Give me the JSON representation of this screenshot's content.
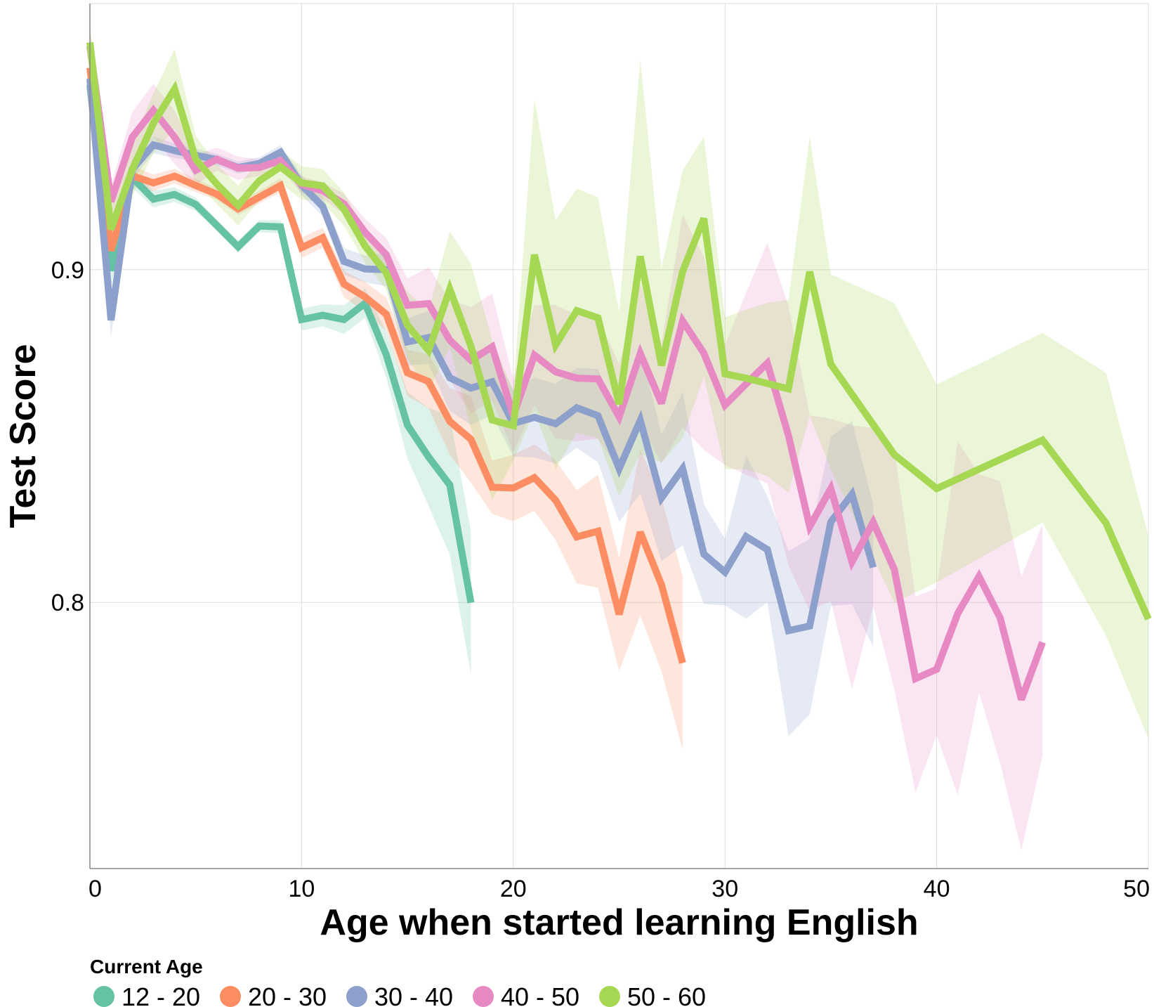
{
  "chart_data": {
    "type": "line",
    "xlabel": "Age when started learning English",
    "ylabel": "Test Score",
    "xlim": [
      0,
      50
    ],
    "ylim": [
      0.72,
      0.98
    ],
    "x_ticks": [
      0,
      10,
      20,
      30,
      40,
      50
    ],
    "x_tick_labels": [
      "0",
      "10",
      "20",
      "30",
      "40",
      "50"
    ],
    "y_ticks": [
      0.8,
      0.9
    ],
    "y_tick_labels": [
      "0.8",
      "0.9"
    ],
    "grid": true,
    "legend": {
      "title": "Current Age",
      "placement": "bottom-left"
    },
    "series": [
      {
        "name": "12 - 20",
        "color": "#66c2a5",
        "x": [
          0,
          1,
          2,
          3,
          4,
          5,
          6,
          7,
          8,
          9,
          10,
          11,
          12,
          13,
          14,
          15,
          16,
          17,
          18
        ],
        "y": [
          0.9555,
          0.8997,
          0.9277,
          0.9212,
          0.9226,
          0.9196,
          0.9133,
          0.9069,
          0.9131,
          0.9129,
          0.885,
          0.8863,
          0.885,
          0.8899,
          0.8744,
          0.8533,
          0.8437,
          0.8353,
          0.7999
        ],
        "lower": [
          0.9505,
          0.8947,
          0.9247,
          0.9187,
          0.9204,
          0.9176,
          0.9116,
          0.9051,
          0.9113,
          0.9109,
          0.8817,
          0.883,
          0.8807,
          0.8855,
          0.8675,
          0.8433,
          0.829,
          0.8143,
          0.7784
        ],
        "upper": [
          0.9605,
          0.9047,
          0.9307,
          0.9237,
          0.9248,
          0.9216,
          0.915,
          0.9087,
          0.9149,
          0.9149,
          0.8883,
          0.8896,
          0.8893,
          0.8943,
          0.8813,
          0.8633,
          0.8584,
          0.8563,
          0.8214
        ]
      },
      {
        "name": "20 - 30",
        "color": "#fc8d62",
        "x": [
          0,
          1,
          2,
          3,
          4,
          5,
          6,
          7,
          8,
          9,
          10,
          11,
          12,
          13,
          14,
          15,
          16,
          17,
          18,
          19,
          20,
          21,
          22,
          23,
          24,
          25,
          26,
          27,
          28
        ],
        "y": [
          0.9607,
          0.9057,
          0.9282,
          0.9261,
          0.9281,
          0.9253,
          0.9227,
          0.9183,
          0.9218,
          0.9253,
          0.9066,
          0.9096,
          0.8957,
          0.8918,
          0.8866,
          0.869,
          0.8664,
          0.8544,
          0.849,
          0.8346,
          0.8344,
          0.8375,
          0.8307,
          0.8197,
          0.8214,
          0.7964,
          0.8211,
          0.8053,
          0.7818
        ],
        "lower": [
          0.9557,
          0.9007,
          0.9252,
          0.9236,
          0.9259,
          0.9233,
          0.921,
          0.9165,
          0.9199,
          0.9232,
          0.9036,
          0.9066,
          0.8917,
          0.8873,
          0.8816,
          0.862,
          0.8584,
          0.8444,
          0.836,
          0.8266,
          0.8244,
          0.8275,
          0.8187,
          0.8057,
          0.8044,
          0.7794,
          0.7961,
          0.7793,
          0.7558
        ],
        "upper": [
          0.9657,
          0.9107,
          0.9312,
          0.9286,
          0.9303,
          0.9273,
          0.9244,
          0.9201,
          0.9237,
          0.9274,
          0.9096,
          0.9126,
          0.8997,
          0.8963,
          0.8916,
          0.876,
          0.8744,
          0.8644,
          0.862,
          0.8426,
          0.8444,
          0.8475,
          0.8427,
          0.8337,
          0.8384,
          0.8134,
          0.8461,
          0.8313,
          0.8078
        ]
      },
      {
        "name": "30 - 40",
        "color": "#8da0cb",
        "x": [
          0,
          1,
          2,
          3,
          4,
          5,
          6,
          7,
          8,
          9,
          10,
          11,
          12,
          13,
          14,
          15,
          16,
          17,
          18,
          19,
          20,
          21,
          22,
          23,
          24,
          25,
          26,
          27,
          28,
          29,
          30,
          31,
          32,
          33,
          34,
          35,
          36,
          37
        ],
        "y": [
          0.9574,
          0.8848,
          0.9302,
          0.9375,
          0.9358,
          0.9344,
          0.9331,
          0.9307,
          0.9319,
          0.9353,
          0.9254,
          0.919,
          0.9025,
          0.9002,
          0.9,
          0.8783,
          0.8796,
          0.8675,
          0.8644,
          0.8663,
          0.8538,
          0.8556,
          0.8537,
          0.8585,
          0.8561,
          0.8402,
          0.8547,
          0.8314,
          0.8402,
          0.8145,
          0.8091,
          0.8198,
          0.8159,
          0.7915,
          0.7929,
          0.8242,
          0.8325,
          0.8105
        ],
        "lower": [
          0.9524,
          0.8798,
          0.9272,
          0.935,
          0.9336,
          0.9324,
          0.9314,
          0.9289,
          0.93,
          0.9332,
          0.9224,
          0.916,
          0.8985,
          0.8962,
          0.895,
          0.8713,
          0.8716,
          0.8575,
          0.8534,
          0.8563,
          0.8438,
          0.8436,
          0.8417,
          0.8465,
          0.8421,
          0.8242,
          0.8327,
          0.8124,
          0.8172,
          0.7995,
          0.7991,
          0.7951,
          0.8001,
          0.7598,
          0.7663,
          0.799,
          0.7994,
          0.7866
        ],
        "upper": [
          0.9624,
          0.8898,
          0.9332,
          0.94,
          0.938,
          0.9364,
          0.9348,
          0.9325,
          0.9338,
          0.9374,
          0.9284,
          0.922,
          0.9065,
          0.9042,
          0.905,
          0.8853,
          0.8876,
          0.8775,
          0.8754,
          0.8763,
          0.8638,
          0.8676,
          0.8657,
          0.8705,
          0.8701,
          0.8562,
          0.8767,
          0.8504,
          0.8632,
          0.8295,
          0.8191,
          0.8441,
          0.832,
          0.8155,
          0.8191,
          0.8498,
          0.8544,
          0.8294
        ]
      },
      {
        "name": "40 - 50",
        "color": "#e78ac3",
        "x": [
          0,
          1,
          2,
          3,
          4,
          5,
          6,
          7,
          8,
          9,
          10,
          11,
          12,
          13,
          14,
          15,
          16,
          17,
          18,
          19,
          20,
          21,
          22,
          23,
          24,
          25,
          26,
          27,
          28,
          29,
          30,
          31,
          32,
          33,
          34,
          35,
          36,
          37,
          38,
          39,
          40,
          41,
          42,
          43,
          44,
          45
        ],
        "y": [
          0.9672,
          0.9205,
          0.9398,
          0.9479,
          0.9398,
          0.9299,
          0.9332,
          0.9305,
          0.9307,
          0.9328,
          0.9256,
          0.9237,
          0.9198,
          0.9112,
          0.9045,
          0.8893,
          0.8898,
          0.8788,
          0.8728,
          0.8768,
          0.8561,
          0.8743,
          0.8693,
          0.8674,
          0.8672,
          0.8558,
          0.8748,
          0.8598,
          0.8846,
          0.8749,
          0.8593,
          0.8657,
          0.8719,
          0.8501,
          0.8228,
          0.8342,
          0.8122,
          0.8241,
          0.8099,
          0.7771,
          0.7799,
          0.7967,
          0.8078,
          0.7953,
          0.7708,
          0.788
        ],
        "lower": [
          0.9622,
          0.9155,
          0.9323,
          0.9399,
          0.9318,
          0.9254,
          0.9297,
          0.927,
          0.9282,
          0.9303,
          0.9231,
          0.9212,
          0.9168,
          0.9072,
          0.8995,
          0.8813,
          0.8788,
          0.8668,
          0.8568,
          0.8608,
          0.8451,
          0.8593,
          0.8493,
          0.8484,
          0.8492,
          0.8398,
          0.8538,
          0.8418,
          0.8526,
          0.8459,
          0.8413,
          0.8383,
          0.8358,
          0.8111,
          0.7974,
          0.8005,
          0.7739,
          0.7988,
          0.7739,
          0.7429,
          0.7601,
          0.742,
          0.7729,
          0.7516,
          0.7255,
          0.754
        ],
        "upper": [
          0.9722,
          0.9255,
          0.9473,
          0.9559,
          0.9478,
          0.9344,
          0.9367,
          0.934,
          0.9332,
          0.9353,
          0.9281,
          0.9262,
          0.9228,
          0.9152,
          0.9095,
          0.8973,
          0.9008,
          0.8908,
          0.8888,
          0.8928,
          0.8671,
          0.8893,
          0.8893,
          0.8864,
          0.8852,
          0.8718,
          0.8958,
          0.8778,
          0.9166,
          0.9039,
          0.8773,
          0.8931,
          0.908,
          0.8891,
          0.8562,
          0.8552,
          0.8532,
          0.8524,
          0.8459,
          0.8018,
          0.8042,
          0.8483,
          0.8385,
          0.8364,
          0.8077,
          0.8235
        ]
      },
      {
        "name": "50 - 60",
        "color": "#a6d854",
        "x": [
          0,
          1,
          2,
          3,
          4,
          5,
          6,
          7,
          8,
          9,
          10,
          11,
          12,
          13,
          14,
          15,
          16,
          17,
          18,
          19,
          20,
          21,
          22,
          23,
          24,
          25,
          26,
          27,
          28,
          29,
          30,
          31,
          32,
          33,
          34,
          35,
          38,
          40,
          45,
          48,
          50
        ],
        "y": [
          0.9683,
          0.9121,
          0.9301,
          0.944,
          0.9543,
          0.9332,
          0.9257,
          0.9193,
          0.9267,
          0.9309,
          0.9261,
          0.9252,
          0.9182,
          0.9071,
          0.899,
          0.8833,
          0.8757,
          0.8941,
          0.877,
          0.8548,
          0.8531,
          0.9045,
          0.8774,
          0.8877,
          0.8855,
          0.8596,
          0.904,
          0.8712,
          0.8995,
          0.9154,
          0.8687,
          0.8674,
          0.8658,
          0.8642,
          0.8994,
          0.8716,
          0.8444,
          0.8342,
          0.8488,
          0.8238,
          0.795
        ],
        "lower": [
          0.9633,
          0.9051,
          0.9221,
          0.935,
          0.9423,
          0.9262,
          0.9197,
          0.9133,
          0.9207,
          0.9259,
          0.9211,
          0.9202,
          0.9132,
          0.9021,
          0.894,
          0.8733,
          0.8637,
          0.8767,
          0.8522,
          0.8307,
          0.8426,
          0.8575,
          0.84,
          0.851,
          0.8493,
          0.832,
          0.8447,
          0.842,
          0.8495,
          0.868,
          0.84,
          0.84,
          0.838,
          0.833,
          0.856,
          0.84,
          0.8,
          0.806,
          0.824,
          0.79,
          0.759
        ],
        "upper": [
          0.9733,
          0.9191,
          0.9381,
          0.953,
          0.9663,
          0.9402,
          0.9317,
          0.9253,
          0.9327,
          0.9359,
          0.9311,
          0.9302,
          0.9232,
          0.9121,
          0.904,
          0.8933,
          0.8877,
          0.9115,
          0.9018,
          0.8789,
          0.8636,
          0.9515,
          0.9148,
          0.9244,
          0.9217,
          0.8872,
          0.9633,
          0.9004,
          0.9298,
          0.94,
          0.8857,
          0.888,
          0.89,
          0.891,
          0.94,
          0.8986,
          0.89,
          0.8655,
          0.881,
          0.869,
          0.82
        ]
      }
    ]
  }
}
